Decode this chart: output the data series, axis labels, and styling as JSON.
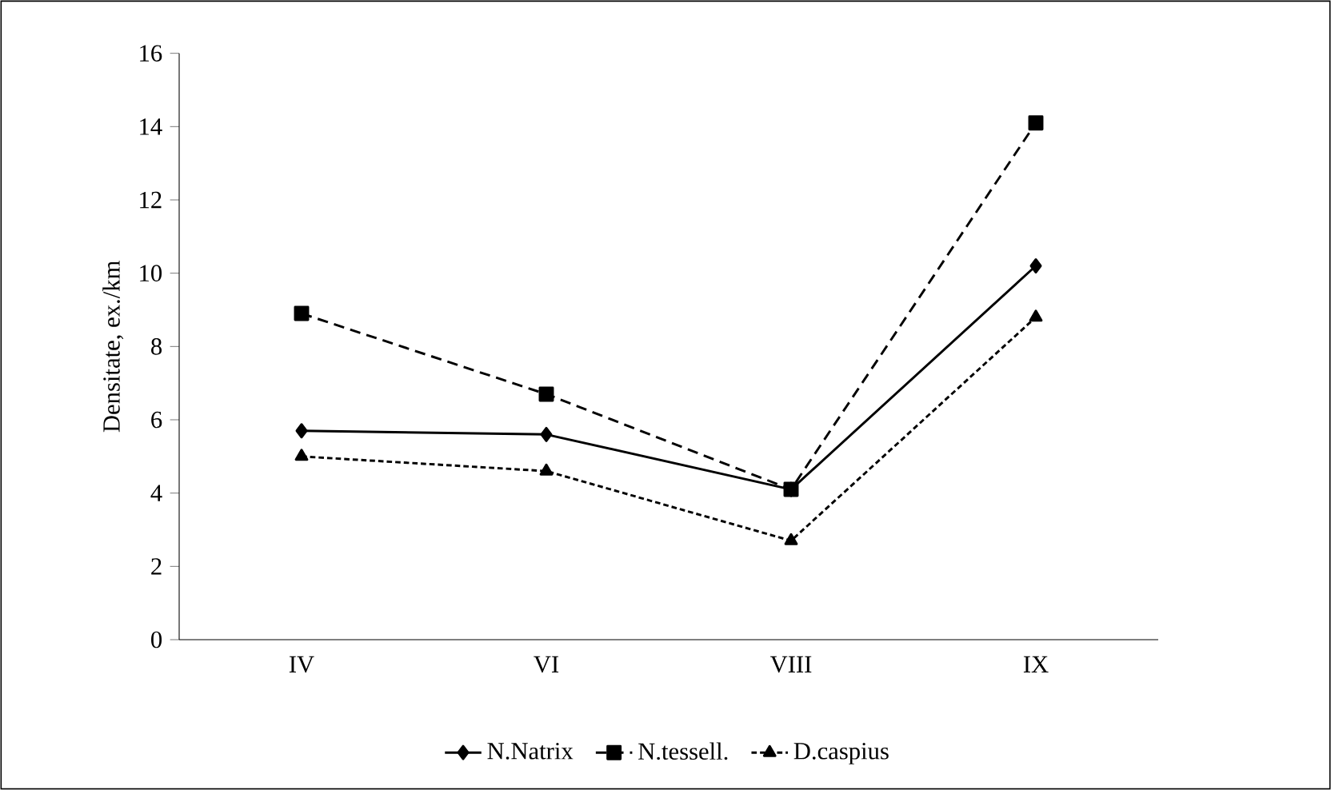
{
  "chart_data": {
    "type": "line",
    "ylabel": "Densitate, ex./km",
    "categories": [
      "IV",
      "VI",
      "VIII",
      "IX"
    ],
    "series": [
      {
        "name": "N.Natrix",
        "color": "#000000",
        "marker": "diamond",
        "line_style": "solid",
        "values": [
          5.7,
          5.6,
          4.1,
          10.2
        ]
      },
      {
        "name": "N.tessell.",
        "color": "#000000",
        "marker": "square",
        "line_style": "dashed",
        "values": [
          8.9,
          6.7,
          4.1,
          14.1
        ]
      },
      {
        "name": "D.caspius",
        "color": "#000000",
        "marker": "triangle",
        "line_style": "dotted",
        "values": [
          5.0,
          4.6,
          2.7,
          8.8
        ]
      }
    ],
    "ylim": [
      0,
      16
    ],
    "yticks": [
      0,
      2,
      4,
      6,
      8,
      10,
      12,
      14,
      16
    ],
    "grid": false,
    "legend": "bottom"
  }
}
